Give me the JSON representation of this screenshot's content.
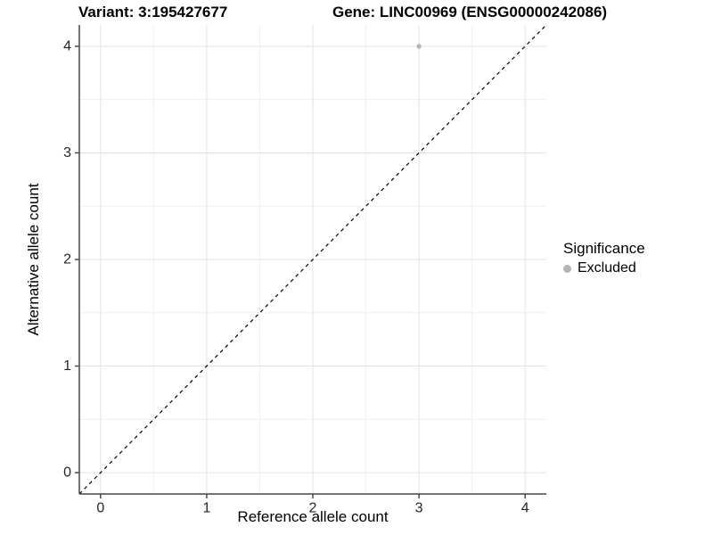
{
  "titles": {
    "variant": "Variant: 3:195427677",
    "gene": "Gene: LINC00969 (ENSG00000242086)"
  },
  "axes": {
    "x_label": "Reference allele count",
    "y_label": "Alternative allele count"
  },
  "legend": {
    "title": "Significance",
    "items": [
      {
        "label": "Excluded",
        "color": "#b3b3b3"
      }
    ],
    "position": "right"
  },
  "colors": {
    "background": "#ffffff",
    "grid_major": "#e2e2e2",
    "grid_minor": "#efefef",
    "axis_line": "#474747",
    "tick_label": "#262626",
    "point": "#b3b3b3",
    "reference_line": "#000000"
  },
  "chart_data": {
    "type": "scatter",
    "title": "Variant: 3:195427677   Gene: LINC00969 (ENSG00000242086)",
    "xlabel": "Reference allele count",
    "ylabel": "Alternative allele count",
    "xlim": [
      -0.2,
      4.2
    ],
    "ylim": [
      -0.2,
      4.2
    ],
    "x_ticks": [
      0,
      1,
      2,
      3,
      4
    ],
    "y_ticks": [
      0,
      1,
      2,
      3,
      4
    ],
    "x_minor_ticks": [
      0.5,
      1.5,
      2.5,
      3.5
    ],
    "y_minor_ticks": [
      0.5,
      1.5,
      2.5,
      3.5
    ],
    "grid": true,
    "legend_position": "right",
    "series": [
      {
        "name": "Excluded",
        "color": "#b3b3b3",
        "points": [
          {
            "x": 3,
            "y": 4
          }
        ]
      }
    ],
    "reference_line": {
      "type": "identity",
      "from": [
        -0.2,
        -0.2
      ],
      "to": [
        4.2,
        4.2
      ],
      "style": "dashed",
      "color": "#000000"
    }
  }
}
